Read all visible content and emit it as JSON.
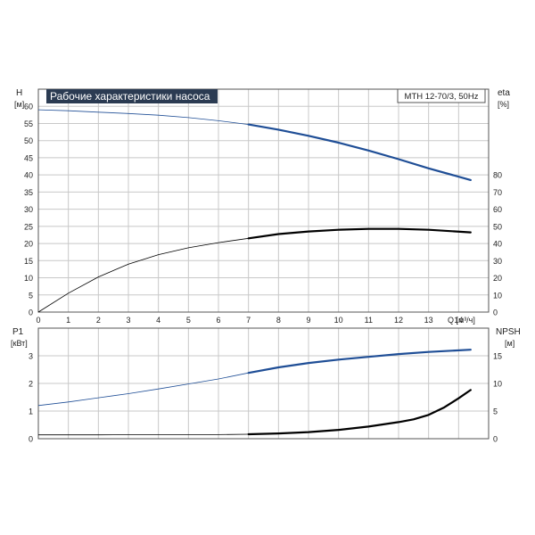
{
  "chart_data": {
    "type": "line",
    "title": "Рабочие характеристики насоса",
    "model": "MTH 12-70/3, 50Hz",
    "colors": {
      "blue": "#1f4e96",
      "black": "#000000",
      "grid": "#c8c8c8",
      "title_bg": "#2b3b52"
    },
    "top": {
      "y_left_label": [
        "H",
        "[м]"
      ],
      "y_right_label": [
        "eta",
        "[%]"
      ],
      "x_label": "Q [м³/ч]",
      "xlim": [
        0,
        15
      ],
      "ylim_left": [
        0,
        65
      ],
      "ylim_right": [
        0,
        130
      ],
      "x_ticks": [
        0,
        1,
        2,
        3,
        4,
        5,
        6,
        7,
        8,
        9,
        10,
        11,
        12,
        13,
        14
      ],
      "y_left_ticks": [
        0,
        5,
        10,
        15,
        20,
        25,
        30,
        35,
        40,
        45,
        50,
        55,
        60
      ],
      "y_right_ticks": [
        0,
        10,
        20,
        30,
        40,
        50,
        60,
        70,
        80
      ],
      "series": [
        {
          "axis": "left",
          "color": "blue",
          "thick_from_x": 7.2,
          "x": [
            0,
            1,
            2,
            3,
            4,
            5,
            6,
            7,
            8,
            9,
            10,
            11,
            12,
            13,
            14.4
          ],
          "y": [
            59,
            58.7,
            58.3,
            57.9,
            57.4,
            56.7,
            55.8,
            54.7,
            53.2,
            51.4,
            49.4,
            47.1,
            44.6,
            41.9,
            38.5
          ]
        },
        {
          "axis": "right",
          "color": "black",
          "thick_from_x": 7.2,
          "x": [
            0,
            1,
            2,
            3,
            4,
            5,
            6,
            7,
            8,
            9,
            10,
            11,
            12,
            13,
            14.4
          ],
          "y": [
            0,
            11,
            20.5,
            28,
            33.5,
            37.5,
            40.5,
            43,
            45.5,
            47,
            48,
            48.5,
            48.5,
            48,
            46.5
          ]
        }
      ]
    },
    "bottom": {
      "y_left_label": [
        "P1",
        "[кВт]"
      ],
      "y_right_label": [
        "NPSH",
        "[м]"
      ],
      "xlim": [
        0,
        15
      ],
      "ylim_left": [
        0,
        4
      ],
      "ylim_right": [
        0,
        20
      ],
      "y_left_ticks": [
        0,
        1,
        2,
        3
      ],
      "y_right_ticks": [
        0,
        5,
        10,
        15
      ],
      "series": [
        {
          "axis": "left",
          "color": "blue",
          "thick_from_x": 7.2,
          "x": [
            0,
            1,
            2,
            3,
            4,
            5,
            6,
            7,
            8,
            9,
            10,
            11,
            12,
            13,
            14.4
          ],
          "y": [
            1.2,
            1.33,
            1.48,
            1.63,
            1.8,
            1.98,
            2.16,
            2.38,
            2.58,
            2.74,
            2.86,
            2.96,
            3.06,
            3.14,
            3.22
          ]
        },
        {
          "axis": "right",
          "color": "black",
          "thick_from_x": 7.2,
          "x": [
            0,
            2,
            4,
            6,
            7,
            8,
            9,
            10,
            11,
            12,
            12.5,
            13,
            13.5,
            14,
            14.4
          ],
          "y": [
            0.7,
            0.7,
            0.72,
            0.75,
            0.8,
            0.95,
            1.2,
            1.6,
            2.2,
            3.0,
            3.5,
            4.3,
            5.6,
            7.3,
            8.8
          ]
        }
      ]
    }
  }
}
